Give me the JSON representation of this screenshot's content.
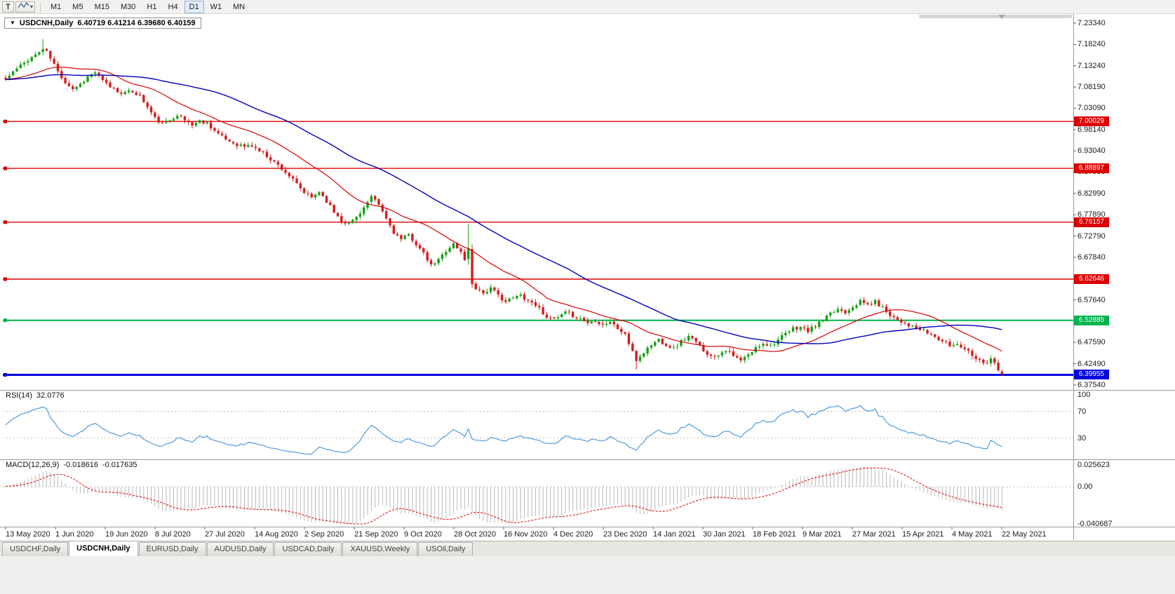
{
  "toolbar": {
    "pointer_tool": "T",
    "timeframes": [
      "M1",
      "M5",
      "M15",
      "M30",
      "H1",
      "H4",
      "D1",
      "W1",
      "MN"
    ],
    "active_timeframe": "D1"
  },
  "chart_header": {
    "symbol_menu_icon": "▼",
    "title": "USDCNH,Daily",
    "ohlc_text": "6.40719 6.41214 6.39680 6.40159"
  },
  "chart_data": {
    "type": "candlestick",
    "symbol": "USDCNH",
    "period": "Daily",
    "last_bar": {
      "open": 6.40719,
      "high": 6.41214,
      "low": 6.3968,
      "close": 6.40159
    },
    "price_range": [
      6.3754,
      7.2334
    ],
    "price_axis_labels": [
      "7.23340",
      "7.18240",
      "7.13240",
      "7.08190",
      "7.03090",
      "6.98140",
      "6.93040",
      "6.87990",
      "6.82990",
      "6.77890",
      "6.72790",
      "6.67840",
      "6.62740",
      "6.57640",
      "6.52540",
      "6.47590",
      "6.42490",
      "6.37540"
    ],
    "horizontal_lines": [
      {
        "price": 7.00029,
        "label": "7.00029",
        "color": "#dd0000",
        "width": 1.4
      },
      {
        "price": 6.88897,
        "label": "6.88897",
        "color": "#dd0000",
        "width": 1.4
      },
      {
        "price": 6.76157,
        "label": "6.76157",
        "color": "#dd0000",
        "width": 1.4
      },
      {
        "price": 6.62646,
        "label": "6.62646",
        "color": "#dd0000",
        "width": 1.4
      },
      {
        "price": 6.52885,
        "label": "6.52885",
        "color": "#00b34d",
        "width": 2
      },
      {
        "price": 6.39955,
        "label": "6.39955",
        "color": "#0000dd",
        "width": 3
      }
    ],
    "moving_averages": [
      {
        "period": 21,
        "color": "#dd0000"
      },
      {
        "period": 55,
        "color": "#0000bb"
      }
    ],
    "candle_up_color": "#17a317",
    "candle_down_color": "#d61c1c",
    "bars_total": 268,
    "seed": 11,
    "close_anchors": [
      [
        0,
        7.1
      ],
      [
        2,
        7.118
      ],
      [
        4,
        7.132
      ],
      [
        6,
        7.147
      ],
      [
        8,
        7.158
      ],
      [
        10,
        7.172
      ],
      [
        11,
        7.165
      ],
      [
        13,
        7.136
      ],
      [
        14,
        7.118
      ],
      [
        16,
        7.094
      ],
      [
        18,
        7.078
      ],
      [
        20,
        7.089
      ],
      [
        22,
        7.106
      ],
      [
        24,
        7.117
      ],
      [
        26,
        7.096
      ],
      [
        28,
        7.083
      ],
      [
        30,
        7.072
      ],
      [
        32,
        7.068
      ],
      [
        34,
        7.071
      ],
      [
        36,
        7.061
      ],
      [
        38,
        7.034
      ],
      [
        40,
        7.008
      ],
      [
        42,
        6.994
      ],
      [
        44,
        7.004
      ],
      [
        46,
        7.017
      ],
      [
        48,
        7.003
      ],
      [
        50,
        6.993
      ],
      [
        52,
        7.001
      ],
      [
        54,
        6.997
      ],
      [
        56,
        6.979
      ],
      [
        58,
        6.963
      ],
      [
        60,
        6.953
      ],
      [
        62,
        6.946
      ],
      [
        64,
        6.941
      ],
      [
        66,
        6.943
      ],
      [
        68,
        6.931
      ],
      [
        70,
        6.919
      ],
      [
        72,
        6.904
      ],
      [
        74,
        6.889
      ],
      [
        76,
        6.871
      ],
      [
        78,
        6.851
      ],
      [
        80,
        6.831
      ],
      [
        82,
        6.82
      ],
      [
        84,
        6.834
      ],
      [
        86,
        6.812
      ],
      [
        88,
        6.786
      ],
      [
        90,
        6.766
      ],
      [
        92,
        6.759
      ],
      [
        94,
        6.774
      ],
      [
        96,
        6.796
      ],
      [
        98,
        6.82
      ],
      [
        100,
        6.802
      ],
      [
        102,
        6.77
      ],
      [
        104,
        6.738
      ],
      [
        106,
        6.72
      ],
      [
        108,
        6.731
      ],
      [
        110,
        6.71
      ],
      [
        112,
        6.686
      ],
      [
        114,
        6.658
      ],
      [
        116,
        6.672
      ],
      [
        118,
        6.695
      ],
      [
        120,
        6.71
      ],
      [
        122,
        6.69
      ],
      [
        123,
        6.674
      ],
      [
        124,
        6.7
      ],
      [
        125,
        6.618
      ],
      [
        126,
        6.606
      ],
      [
        128,
        6.594
      ],
      [
        130,
        6.604
      ],
      [
        132,
        6.588
      ],
      [
        134,
        6.573
      ],
      [
        136,
        6.581
      ],
      [
        138,
        6.589
      ],
      [
        140,
        6.576
      ],
      [
        142,
        6.566
      ],
      [
        144,
        6.547
      ],
      [
        146,
        6.53
      ],
      [
        148,
        6.534
      ],
      [
        150,
        6.546
      ],
      [
        152,
        6.541
      ],
      [
        154,
        6.533
      ],
      [
        156,
        6.523
      ],
      [
        158,
        6.529
      ],
      [
        160,
        6.519
      ],
      [
        162,
        6.526
      ],
      [
        164,
        6.509
      ],
      [
        166,
        6.496
      ],
      [
        167,
        6.474
      ],
      [
        168,
        6.452
      ],
      [
        169,
        6.434
      ],
      [
        171,
        6.453
      ],
      [
        173,
        6.471
      ],
      [
        175,
        6.483
      ],
      [
        177,
        6.471
      ],
      [
        179,
        6.463
      ],
      [
        181,
        6.479
      ],
      [
        183,
        6.491
      ],
      [
        185,
        6.476
      ],
      [
        187,
        6.459
      ],
      [
        189,
        6.443
      ],
      [
        191,
        6.449
      ],
      [
        193,
        6.459
      ],
      [
        195,
        6.443
      ],
      [
        197,
        6.433
      ],
      [
        199,
        6.446
      ],
      [
        201,
        6.463
      ],
      [
        203,
        6.476
      ],
      [
        205,
        6.469
      ],
      [
        207,
        6.483
      ],
      [
        209,
        6.496
      ],
      [
        211,
        6.509
      ],
      [
        213,
        6.513
      ],
      [
        215,
        6.503
      ],
      [
        217,
        6.516
      ],
      [
        219,
        6.529
      ],
      [
        221,
        6.543
      ],
      [
        223,
        6.556
      ],
      [
        225,
        6.549
      ],
      [
        227,
        6.563
      ],
      [
        229,
        6.573
      ],
      [
        231,
        6.566
      ],
      [
        233,
        6.573
      ],
      [
        235,
        6.559
      ],
      [
        237,
        6.543
      ],
      [
        239,
        6.531
      ],
      [
        241,
        6.523
      ],
      [
        243,
        6.513
      ],
      [
        245,
        6.506
      ],
      [
        247,
        6.499
      ],
      [
        249,
        6.489
      ],
      [
        251,
        6.479
      ],
      [
        253,
        6.469
      ],
      [
        255,
        6.473
      ],
      [
        257,
        6.463
      ],
      [
        259,
        6.449
      ],
      [
        261,
        6.433
      ],
      [
        263,
        6.429
      ],
      [
        264,
        6.439
      ],
      [
        265,
        6.426
      ],
      [
        266,
        6.409
      ],
      [
        267,
        6.4016
      ]
    ],
    "bar_overrides": [
      {
        "b": 10,
        "h": 7.1955
      },
      {
        "b": 124,
        "o": 6.674,
        "c": 6.7,
        "h": 6.757,
        "l": 6.66
      },
      {
        "b": 125,
        "o": 6.698,
        "c": 6.615,
        "l": 6.606
      },
      {
        "b": 169,
        "l": 6.412
      },
      {
        "b": 267,
        "o": 6.40719,
        "h": 6.41214,
        "l": 6.3968,
        "c": 6.40159
      }
    ],
    "x_labels": [
      "13 May 2020",
      "1 Jun 2020",
      "19 Jun 2020",
      "8 Jul 2020",
      "27 Jul 2020",
      "14 Aug 2020",
      "2 Sep 2020",
      "21 Sep 2020",
      "9 Oct 2020",
      "28 Oct 2020",
      "16 Nov 2020",
      "4 Dec 2020",
      "23 Dec 2020",
      "14 Jan 2021",
      "30 Jan 2021",
      "18 Feb 2021",
      "9 Mar 2021",
      "27 Mar 2021",
      "15 Apr 2021",
      "4 May 2021",
      "22 May 2021"
    ],
    "indicators": {
      "rsi": {
        "name": "RSI(14)",
        "current": "32.0776",
        "levels": [
          70,
          30
        ],
        "axis_labels": [
          "100",
          "70",
          "30"
        ],
        "color": "#4f9be0"
      },
      "macd": {
        "name": "MACD(12,26,9)",
        "current_main": "-0.018616",
        "current_signal": "-0.017635",
        "axis_top": "0.025623",
        "axis_zero": "0.00",
        "axis_bottom": "-0.040687",
        "scale_top": 0.025623,
        "scale_bottom": -0.040687,
        "histogram_color": "#b9b9b9",
        "signal_color": "#dd0000"
      }
    }
  },
  "tabs": {
    "items": [
      {
        "label": "USDCHF,Daily",
        "active": false
      },
      {
        "label": "USDCNH,Daily",
        "active": true
      },
      {
        "label": "EURUSD,Daily",
        "active": false
      },
      {
        "label": "AUDUSD,Daily",
        "active": false
      },
      {
        "label": "USDCAD,Daily",
        "active": false
      },
      {
        "label": "XAUUSD,Weekly",
        "active": false
      },
      {
        "label": "USOil,Daily",
        "active": false
      }
    ]
  }
}
